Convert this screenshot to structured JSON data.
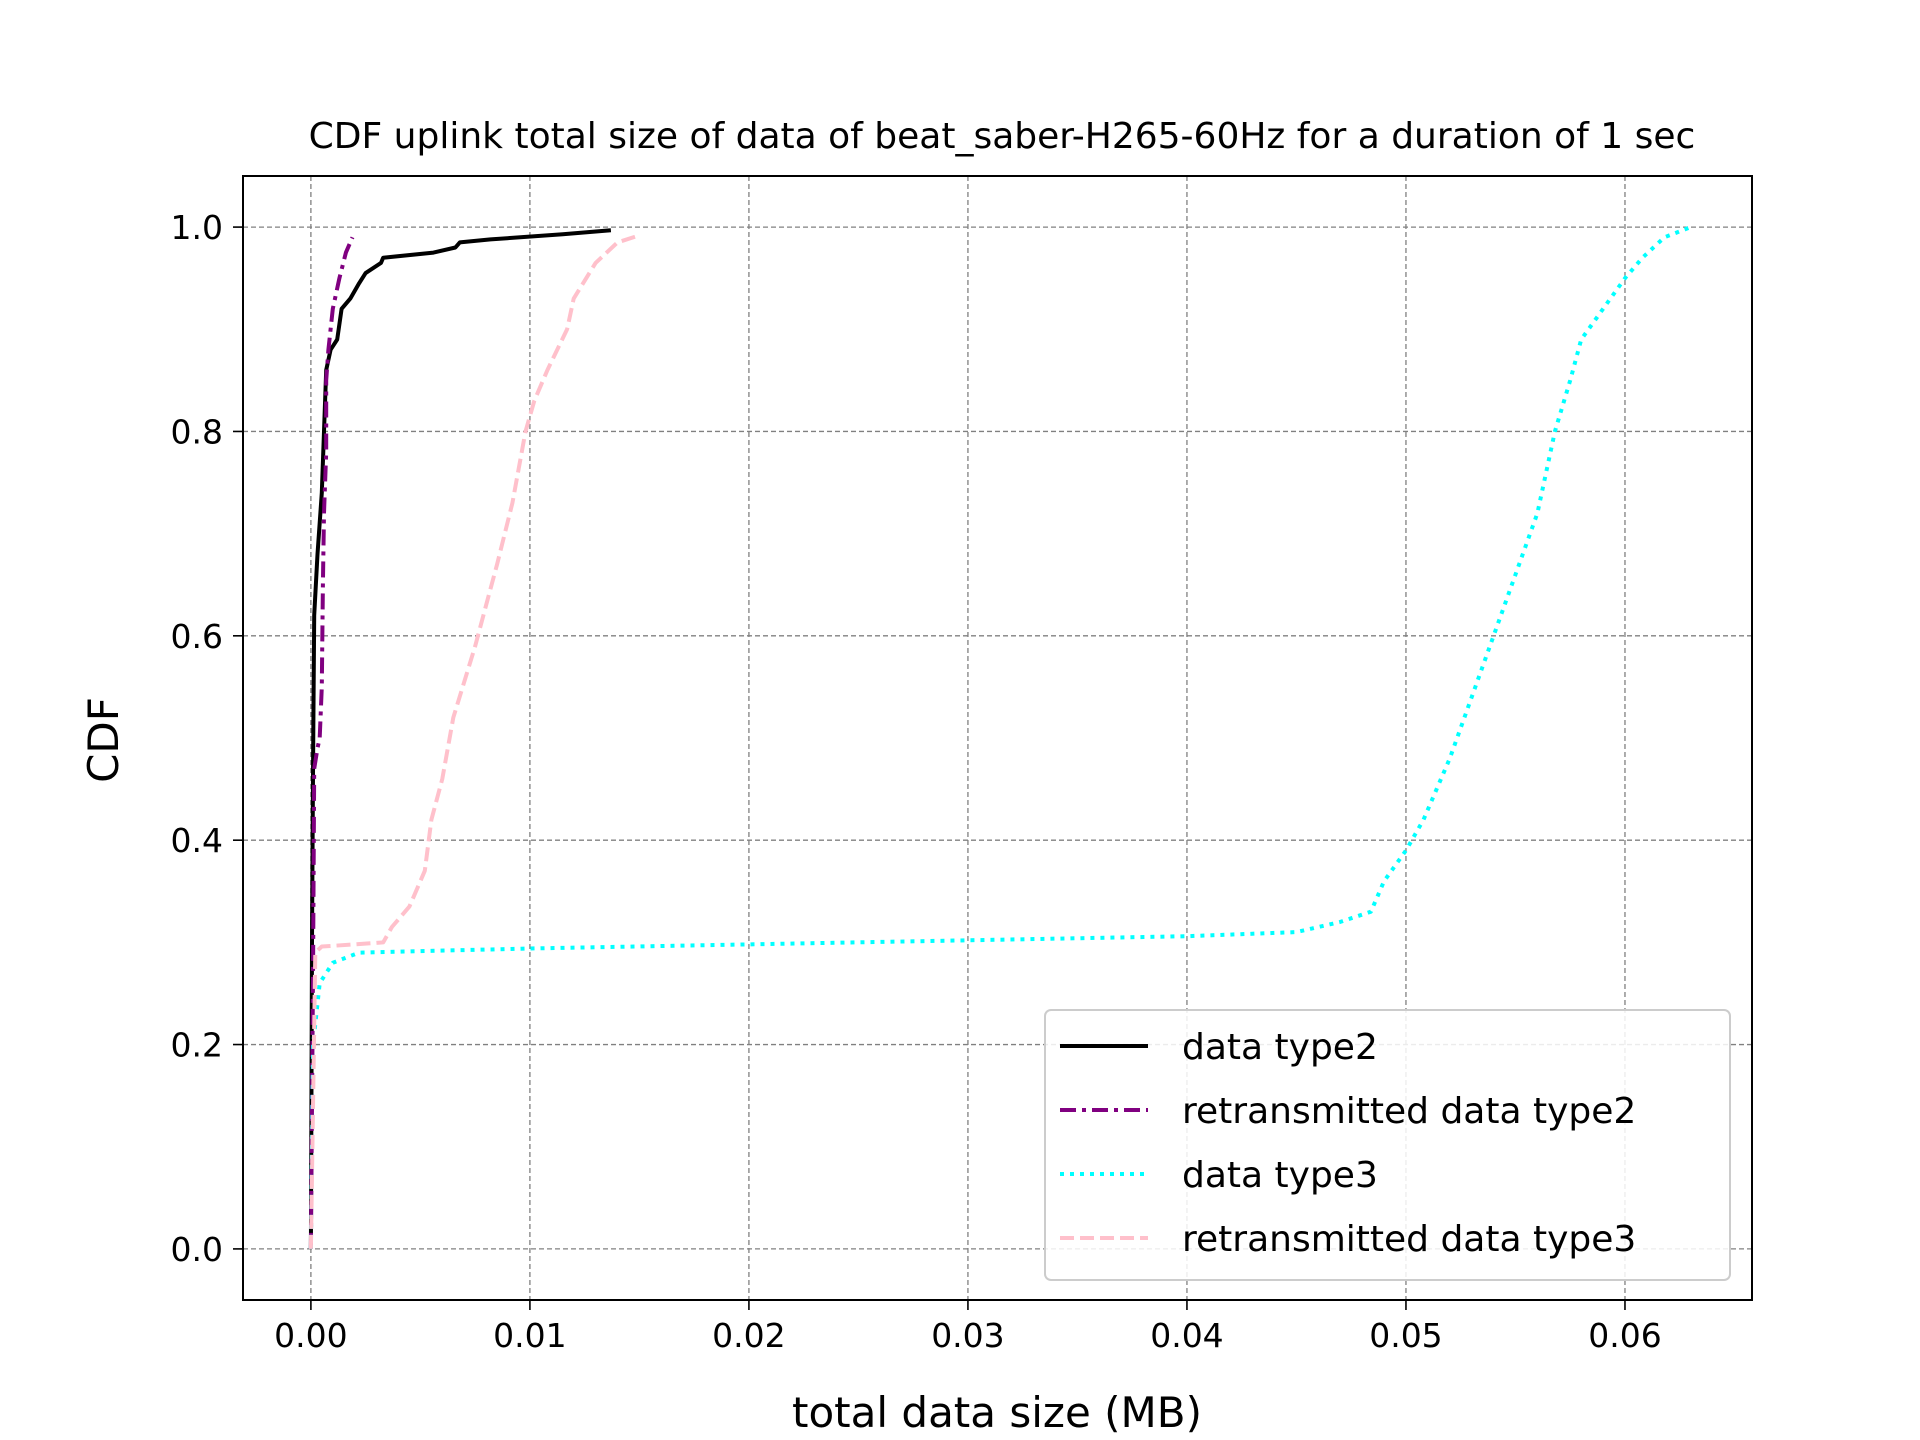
{
  "chart_data": {
    "type": "line",
    "title": "CDF uplink total size of data of beat_saber-H265-60Hz for a duration of 1 sec",
    "xlabel": "total data size (MB)",
    "ylabel": "CDF",
    "xlim": [
      -0.0031,
      0.0658
    ],
    "ylim": [
      -0.05,
      1.05
    ],
    "xticks": [
      0.0,
      0.01,
      0.02,
      0.03,
      0.04,
      0.05,
      0.06
    ],
    "xtick_labels": [
      "0.00",
      "0.01",
      "0.02",
      "0.03",
      "0.04",
      "0.05",
      "0.06"
    ],
    "yticks": [
      0.0,
      0.2,
      0.4,
      0.6,
      0.8,
      1.0
    ],
    "ytick_labels": [
      "0.0",
      "0.2",
      "0.4",
      "0.6",
      "0.8",
      "1.0"
    ],
    "grid": true,
    "legend_position": "lower-right",
    "series": [
      {
        "name": "data type2",
        "color": "#000000",
        "style": "solid",
        "points": [
          [
            0.0,
            0.0
          ],
          [
            5e-05,
            0.3
          ],
          [
            0.0001,
            0.48
          ],
          [
            0.00015,
            0.62
          ],
          [
            0.0003,
            0.68
          ],
          [
            0.0005,
            0.74
          ],
          [
            0.0006,
            0.8
          ],
          [
            0.0007,
            0.86
          ],
          [
            0.0009,
            0.88
          ],
          [
            0.0012,
            0.89
          ],
          [
            0.0014,
            0.92
          ],
          [
            0.0018,
            0.93
          ],
          [
            0.0022,
            0.945
          ],
          [
            0.0025,
            0.955
          ],
          [
            0.0032,
            0.965
          ],
          [
            0.0033,
            0.97
          ],
          [
            0.0056,
            0.975
          ],
          [
            0.0066,
            0.98
          ],
          [
            0.0068,
            0.985
          ],
          [
            0.0082,
            0.988
          ],
          [
            0.0115,
            0.993
          ],
          [
            0.0137,
            0.997
          ]
        ]
      },
      {
        "name": "retransmitted data type2",
        "color": "#800080",
        "style": "dashdot",
        "points": [
          [
            0.0,
            0.0
          ],
          [
            0.0001,
            0.28
          ],
          [
            0.00015,
            0.47
          ],
          [
            0.0003,
            0.49
          ],
          [
            0.0004,
            0.5
          ],
          [
            0.0005,
            0.55
          ],
          [
            0.00055,
            0.65
          ],
          [
            0.0006,
            0.72
          ],
          [
            0.0007,
            0.78
          ],
          [
            0.0007,
            0.85
          ],
          [
            0.0008,
            0.88
          ],
          [
            0.001,
            0.92
          ],
          [
            0.0013,
            0.95
          ],
          [
            0.0016,
            0.975
          ],
          [
            0.0019,
            0.99
          ]
        ]
      },
      {
        "name": "data type3",
        "color": "#00ffff",
        "style": "dotted",
        "points": [
          [
            0.0,
            0.0
          ],
          [
            0.0001,
            0.2
          ],
          [
            0.0004,
            0.26
          ],
          [
            0.001,
            0.28
          ],
          [
            0.0022,
            0.29
          ],
          [
            0.01,
            0.294
          ],
          [
            0.02,
            0.298
          ],
          [
            0.03,
            0.302
          ],
          [
            0.04,
            0.306
          ],
          [
            0.045,
            0.31
          ],
          [
            0.047,
            0.32
          ],
          [
            0.0484,
            0.33
          ],
          [
            0.049,
            0.36
          ],
          [
            0.05,
            0.39
          ],
          [
            0.0508,
            0.42
          ],
          [
            0.052,
            0.48
          ],
          [
            0.053,
            0.54
          ],
          [
            0.054,
            0.6
          ],
          [
            0.055,
            0.66
          ],
          [
            0.056,
            0.72
          ],
          [
            0.0568,
            0.8
          ],
          [
            0.0575,
            0.85
          ],
          [
            0.058,
            0.89
          ],
          [
            0.059,
            0.92
          ],
          [
            0.06,
            0.95
          ],
          [
            0.0608,
            0.97
          ],
          [
            0.0618,
            0.99
          ],
          [
            0.063,
            1.0
          ]
        ]
      },
      {
        "name": "retransmitted data type3",
        "color": "#ffc0cb",
        "style": "dashed",
        "points": [
          [
            0.0,
            0.0
          ],
          [
            0.0002,
            0.29
          ],
          [
            0.0005,
            0.296
          ],
          [
            0.002,
            0.298
          ],
          [
            0.0033,
            0.3
          ],
          [
            0.0037,
            0.315
          ],
          [
            0.0045,
            0.335
          ],
          [
            0.0052,
            0.37
          ],
          [
            0.0055,
            0.42
          ],
          [
            0.006,
            0.46
          ],
          [
            0.0065,
            0.52
          ],
          [
            0.0075,
            0.59
          ],
          [
            0.008,
            0.63
          ],
          [
            0.0085,
            0.67
          ],
          [
            0.0092,
            0.73
          ],
          [
            0.0098,
            0.8
          ],
          [
            0.0102,
            0.83
          ],
          [
            0.0108,
            0.86
          ],
          [
            0.0117,
            0.9
          ],
          [
            0.012,
            0.93
          ],
          [
            0.013,
            0.965
          ],
          [
            0.014,
            0.985
          ],
          [
            0.015,
            0.992
          ]
        ]
      }
    ]
  }
}
